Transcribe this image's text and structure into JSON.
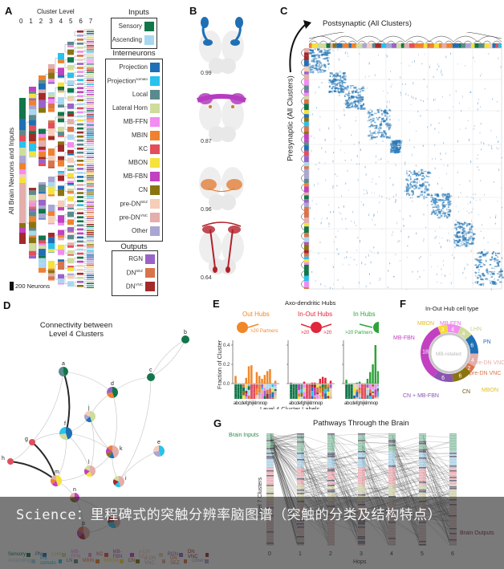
{
  "panels": {
    "A": {
      "letter": "A",
      "cluster_level_title": "Cluster Level",
      "levels": [
        "0",
        "1",
        "2",
        "3",
        "4",
        "5",
        "6",
        "7"
      ],
      "y_axis_label": "All Brain Neurons and Inputs",
      "scale_bar_label": "200 Neurons",
      "legend": {
        "inputs_title": "Inputs",
        "inputs": [
          {
            "label": "Sensory",
            "color": "#12764a"
          },
          {
            "label": "Ascending",
            "color": "#a8d8f0"
          }
        ],
        "interneurons_title": "Interneurons",
        "interneurons": [
          {
            "label": "Projection",
            "color": "#1f6fb5"
          },
          {
            "label": "Projection",
            "sup": "somato",
            "color": "#27c2ee"
          },
          {
            "label": "Local",
            "color": "#5b8a8c"
          },
          {
            "label": "Lateral Horn",
            "color": "#cfdc9c"
          },
          {
            "label": "MB-FFN",
            "color": "#f28cf0"
          },
          {
            "label": "MBIN",
            "color": "#f0822f"
          },
          {
            "label": "KC",
            "color": "#e24e5c"
          },
          {
            "label": "MBON",
            "color": "#f5e23a"
          },
          {
            "label": "MB-FBN",
            "color": "#c241c0"
          },
          {
            "label": "CN",
            "color": "#8a7412"
          },
          {
            "label": "pre-DN",
            "sup": "SEZ",
            "color": "#f6cdb8"
          },
          {
            "label": "pre-DN",
            "sup": "VNC",
            "color": "#e3aeab"
          },
          {
            "label": "Other",
            "color": "#aaa6d2"
          }
        ],
        "outputs_title": "Outputs",
        "outputs": [
          {
            "label": "RGN",
            "color": "#9a63c8"
          },
          {
            "label": "DN",
            "sup": "SEZ",
            "color": "#d9744a"
          },
          {
            "label": "DN",
            "sup": "VNC",
            "color": "#a32a2a"
          }
        ]
      }
    },
    "B": {
      "letter": "B",
      "scores": [
        "0.99",
        "0.87",
        "0.96",
        "0.64"
      ],
      "colors": [
        "#1f6fb5",
        "#b53cc0",
        "#e0782e",
        "#b2202a"
      ]
    },
    "C": {
      "letter": "C",
      "col_label": "Postsynaptic (All Clusters)",
      "row_label": "Presynaptic (All Clusters)"
    },
    "D": {
      "letter": "D",
      "title_line1": "Connectivity between",
      "title_line2": "Level 4 Clusters",
      "nodes": [
        "a",
        "b",
        "c",
        "d",
        "e",
        "f",
        "g",
        "h",
        "i",
        "j",
        "k",
        "l",
        "m",
        "n",
        "o",
        "p"
      ],
      "legend_row1": [
        "Sensory",
        "PN",
        "LHN",
        "MB-FFN",
        "KC",
        "MB-FBN",
        "p-DN SEZ",
        "RGN",
        "DN VNC"
      ],
      "legend_row2": [
        "Ascending",
        "PN somato",
        "LN",
        "MBIN",
        "MBON",
        "CN",
        "p-DN VNC",
        "DN SEZ",
        "Other"
      ]
    },
    "E": {
      "letter": "E",
      "title": "Axo-dendritic Hubs",
      "hub_types": [
        {
          "label": "Out Hubs",
          "sub": ">20 Partners",
          "color": "#f0882a"
        },
        {
          "label": "In-Out Hubs",
          "sub_left": ">20",
          "sub_right": ">20",
          "color": "#e0283a"
        },
        {
          "label": "In Hubs",
          "sub": ">20 Partners",
          "color": "#2fa33a"
        }
      ],
      "y_label": "Fraction of Cluster",
      "y_ticks": [
        "0.0",
        "0.2",
        "0.4"
      ],
      "x_tick_text": "abcdefghijklmnop",
      "x_label": "Level 4 Cluster Labels"
    },
    "F": {
      "letter": "F",
      "title": "In-Out Hub cell type",
      "center_label": "MB-related",
      "segments": [
        {
          "label": "MBON",
          "value": "3",
          "color": "#f5d83a"
        },
        {
          "label": "MB-FFN",
          "value": "4",
          "color": "#f28cf0"
        },
        {
          "label": "LHN",
          "value": "4",
          "color": "#cfdc9c"
        },
        {
          "label": "PN",
          "value": "6",
          "color": "#1f6fb5"
        },
        {
          "label": "pre-DN VNC",
          "value": "4",
          "color": "#e3aeab"
        },
        {
          "label": "pre-DN VNC → MBON",
          "value": "2",
          "color": "#d9744a"
        },
        {
          "label": "CN",
          "value": "6",
          "color": "#8a7412"
        },
        {
          "label": "CN + MB-FBN",
          "value": "6",
          "color": "#8a55b0"
        },
        {
          "label": "MB-FBN",
          "value": "18",
          "color": "#c241c0"
        }
      ],
      "callout_mbon": "MBON"
    },
    "G": {
      "letter": "G",
      "title": "Pathways Through the Brain",
      "inputs_label": "Brain Inputs",
      "outputs_label": "Brain Outputs",
      "y_label": "Level 7 Clusters",
      "x_label": "Hops",
      "hops": [
        "0",
        "1",
        "2",
        "3",
        "4",
        "5",
        "6"
      ]
    }
  },
  "chart_data": [
    {
      "type": "bar",
      "title": "Out Hubs (>20 Partners)",
      "categories": [
        "a",
        "b",
        "c",
        "d",
        "e",
        "f",
        "g",
        "h",
        "i",
        "j",
        "k",
        "l",
        "m",
        "n",
        "o",
        "p"
      ],
      "values": [
        0.08,
        0,
        0,
        0,
        0.06,
        0.18,
        0.19,
        0,
        0.12,
        0.08,
        0.05,
        0.09,
        0.13,
        0.15,
        0,
        0.03
      ],
      "xlabel": "Level 4 Cluster Labels",
      "ylabel": "Fraction of Cluster",
      "ylim": [
        0,
        0.45
      ]
    },
    {
      "type": "bar",
      "title": "In-Out Hubs (>20 / >20)",
      "categories": [
        "a",
        "b",
        "c",
        "d",
        "e",
        "f",
        "g",
        "h",
        "i",
        "j",
        "k",
        "l",
        "m",
        "n",
        "o",
        "p"
      ],
      "values": [
        0.01,
        0,
        0,
        0,
        0,
        0.02,
        0,
        0,
        0.01,
        0.01,
        0,
        0.05,
        0.07,
        0.06,
        0,
        0.03
      ],
      "xlabel": "Level 4 Cluster Labels",
      "ylabel": "Fraction of Cluster",
      "ylim": [
        0,
        0.45
      ]
    },
    {
      "type": "bar",
      "title": "In Hubs (>20 Partners)",
      "categories": [
        "a",
        "b",
        "c",
        "d",
        "e",
        "f",
        "g",
        "h",
        "i",
        "j",
        "k",
        "l",
        "m",
        "n",
        "o",
        "p"
      ],
      "values": [
        0.04,
        0,
        0,
        0,
        0.01,
        0.02,
        0,
        0,
        0.05,
        0.12,
        0.2,
        0.4,
        0.13,
        0.1,
        0,
        0.1
      ],
      "xlabel": "Level 4 Cluster Labels",
      "ylabel": "Fraction of Cluster",
      "ylim": [
        0,
        0.45
      ]
    },
    {
      "type": "pie",
      "title": "In-Out Hub cell type",
      "categories": [
        "MBON",
        "MB-FFN",
        "LHN",
        "PN",
        "pre-DN VNC",
        "pre-DN VNC/MBON",
        "CN",
        "CN + MB-FBN",
        "MB-FBN"
      ],
      "values": [
        3,
        4,
        4,
        6,
        4,
        2,
        6,
        6,
        18
      ]
    }
  ],
  "overlay": {
    "caption": "Science：里程碑式的突触分辨率脑图谱（突触的分类及结构特点）"
  }
}
